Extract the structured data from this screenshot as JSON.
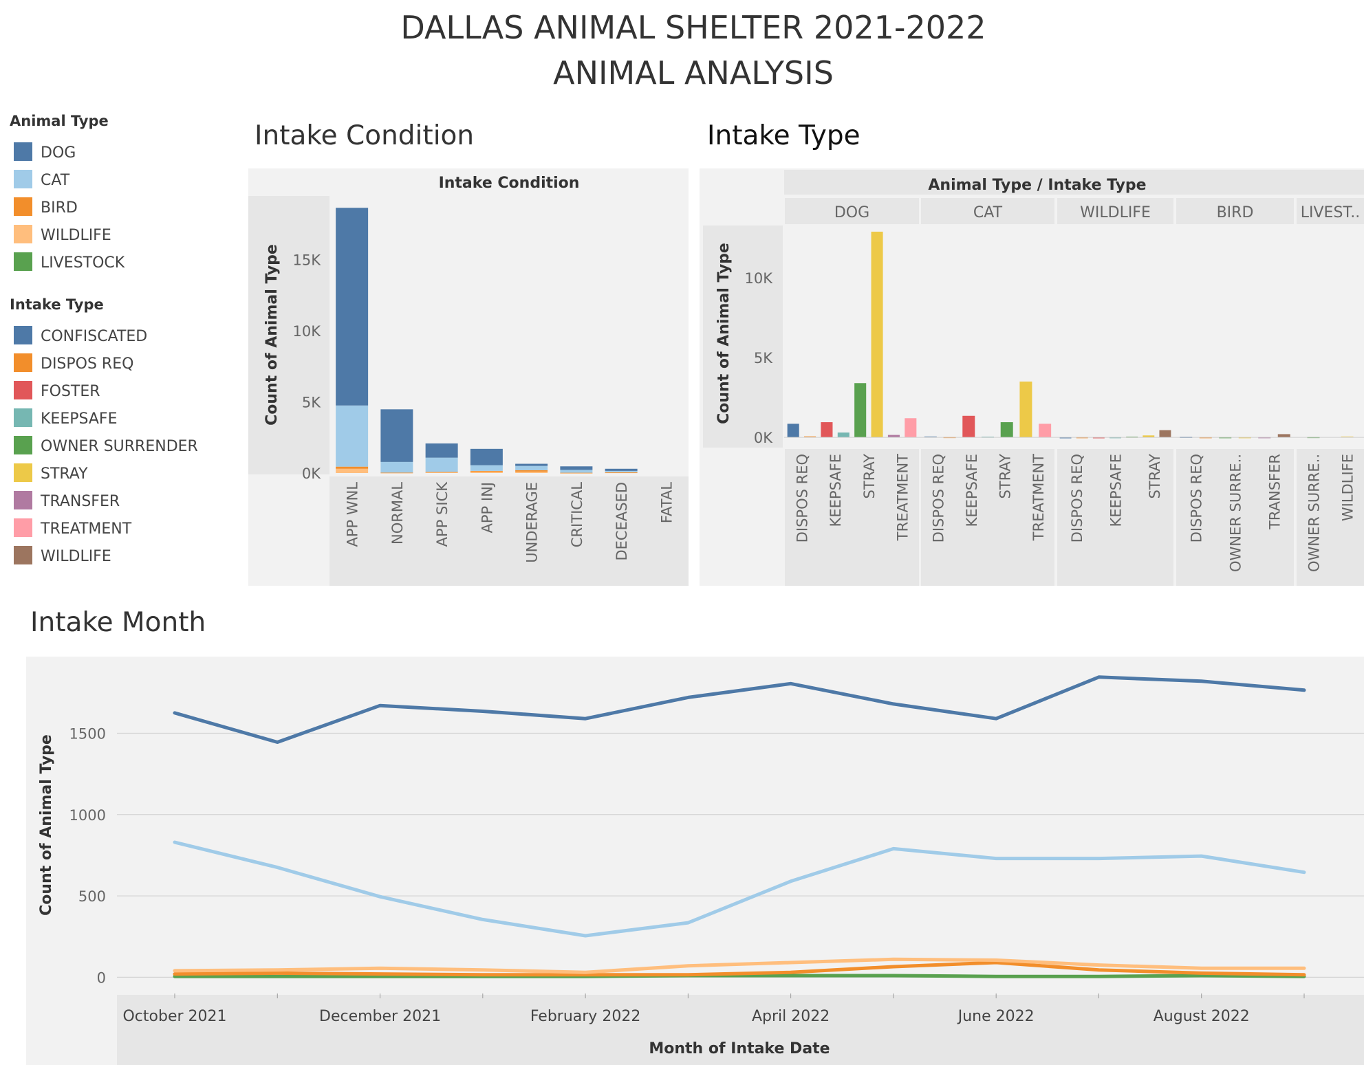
{
  "dashboard": {
    "title_line1": "DALLAS ANIMAL SHELTER 2021-2022",
    "title_line2": "ANIMAL ANALYSIS"
  },
  "legend_animal": {
    "title": "Animal Type",
    "items": [
      {
        "label": "DOG",
        "color": "#4e79a7"
      },
      {
        "label": "CAT",
        "color": "#a0cbe8"
      },
      {
        "label": "BIRD",
        "color": "#f28e2b"
      },
      {
        "label": "WILDLIFE",
        "color": "#ffbe7d"
      },
      {
        "label": "LIVESTOCK",
        "color": "#59a14f"
      }
    ]
  },
  "legend_intake": {
    "title": "Intake Type",
    "items": [
      {
        "label": "CONFISCATED",
        "color": "#4e79a7"
      },
      {
        "label": "DISPOS REQ",
        "color": "#f28e2b"
      },
      {
        "label": "FOSTER",
        "color": "#e15759"
      },
      {
        "label": "KEEPSAFE",
        "color": "#76b7b2"
      },
      {
        "label": "OWNER SURRENDER",
        "color": "#59a14f"
      },
      {
        "label": "STRAY",
        "color": "#edc948"
      },
      {
        "label": "TRANSFER",
        "color": "#b07aa1"
      },
      {
        "label": "TREATMENT",
        "color": "#ff9da7"
      },
      {
        "label": "WILDLIFE",
        "color": "#9c755f"
      }
    ]
  },
  "chart_data": [
    {
      "id": "condition",
      "type": "bar",
      "stacked": true,
      "title": "Intake Condition",
      "header": "Intake Condition",
      "ylabel": "Count of Animal Type",
      "ylim": [
        0,
        19000
      ],
      "yticks": [
        0,
        5000,
        10000,
        15000
      ],
      "ytick_labels": [
        "0K",
        "5K",
        "10K",
        "15K"
      ],
      "categories": [
        "APP WNL",
        "NORMAL",
        "APP SICK",
        "APP INJ",
        "UNDERAGE",
        "CRITICAL",
        "DECEASED",
        "FATAL"
      ],
      "series": [
        {
          "name": "WILDLIFE",
          "color": "#ffbe7d",
          "values": [
            300,
            20,
            50,
            100,
            100,
            10,
            30,
            0
          ]
        },
        {
          "name": "BIRD",
          "color": "#f28e2b",
          "values": [
            150,
            10,
            30,
            50,
            100,
            10,
            20,
            0
          ]
        },
        {
          "name": "CAT",
          "color": "#a0cbe8",
          "values": [
            4300,
            750,
            1000,
            400,
            300,
            200,
            100,
            0
          ]
        },
        {
          "name": "DOG",
          "color": "#4e79a7",
          "values": [
            13900,
            3700,
            1000,
            1150,
            150,
            250,
            150,
            0
          ]
        }
      ]
    },
    {
      "id": "intake_type",
      "type": "bar",
      "title": "Intake Type",
      "header": "Animal Type  /  Intake Type",
      "ylabel": "Count of Animal Type",
      "ylim": [
        -600,
        13200
      ],
      "yticks": [
        0,
        5000,
        10000
      ],
      "ytick_labels": [
        "0K",
        "5K",
        "10K"
      ],
      "panels": [
        {
          "name": "DOG",
          "bars": [
            {
              "type": "CONFISCATED",
              "value": 850,
              "color": "#4e79a7"
            },
            {
              "type": "DISPOS REQ",
              "value": 60,
              "color": "#f28e2b"
            },
            {
              "type": "FOSTER",
              "value": 950,
              "color": "#e15759"
            },
            {
              "type": "KEEPSAFE",
              "value": 300,
              "color": "#76b7b2"
            },
            {
              "type": "OWNER SURRENDER",
              "value": 3400,
              "color": "#59a14f"
            },
            {
              "type": "STRAY",
              "value": 12900,
              "color": "#edc948"
            },
            {
              "type": "TRANSFER",
              "value": 150,
              "color": "#b07aa1"
            },
            {
              "type": "TREATMENT",
              "value": 1200,
              "color": "#ff9da7"
            }
          ],
          "labels": [
            "DISPOS REQ",
            "KEEPSAFE",
            "STRAY",
            "TREATMENT"
          ]
        },
        {
          "name": "CAT",
          "bars": [
            {
              "type": "CONFISCATED",
              "value": 50,
              "color": "#4e79a7"
            },
            {
              "type": "DISPOS REQ",
              "value": 20,
              "color": "#f28e2b"
            },
            {
              "type": "FOSTER",
              "value": 1350,
              "color": "#e15759"
            },
            {
              "type": "KEEPSAFE",
              "value": 40,
              "color": "#76b7b2"
            },
            {
              "type": "OWNER SURRENDER",
              "value": 950,
              "color": "#59a14f"
            },
            {
              "type": "STRAY",
              "value": 3500,
              "color": "#edc948"
            },
            {
              "type": "TREATMENT",
              "value": 850,
              "color": "#ff9da7"
            }
          ],
          "labels": [
            "DISPOS REQ",
            "KEEPSAFE",
            "STRAY",
            "TREATMENT"
          ]
        },
        {
          "name": "WILDLIFE",
          "bars": [
            {
              "type": "CONFISCATED",
              "value": 5,
              "color": "#4e79a7"
            },
            {
              "type": "DISPOS REQ",
              "value": 10,
              "color": "#f28e2b"
            },
            {
              "type": "FOSTER",
              "value": 5,
              "color": "#e15759"
            },
            {
              "type": "KEEPSAFE",
              "value": 10,
              "color": "#76b7b2"
            },
            {
              "type": "OWNER SURRENDER",
              "value": 40,
              "color": "#59a14f"
            },
            {
              "type": "STRAY",
              "value": 120,
              "color": "#edc948"
            },
            {
              "type": "WILDLIFE",
              "value": 450,
              "color": "#9c755f"
            }
          ],
          "labels": [
            "DISPOS REQ",
            "KEEPSAFE",
            "STRAY"
          ]
        },
        {
          "name": "BIRD",
          "bars": [
            {
              "type": "CONFISCATED",
              "value": 30,
              "color": "#4e79a7"
            },
            {
              "type": "DISPOS REQ",
              "value": 10,
              "color": "#f28e2b"
            },
            {
              "type": "OWNER SURRENDER",
              "value": 10,
              "color": "#59a14f"
            },
            {
              "type": "STRAY",
              "value": 10,
              "color": "#edc948"
            },
            {
              "type": "TRANSFER",
              "value": 10,
              "color": "#b07aa1"
            },
            {
              "type": "WILDLIFE",
              "value": 200,
              "color": "#9c755f"
            }
          ],
          "labels": [
            "DISPOS REQ",
            "OWNER SURRE..",
            "TRANSFER"
          ]
        },
        {
          "name": "LIVEST..",
          "bars": [
            {
              "type": "OWNER SURRENDER",
              "value": 20,
              "color": "#59a14f"
            },
            {
              "type": "STRAY",
              "value": 50,
              "color": "#edc948"
            }
          ],
          "labels": [
            "OWNER SURRE..",
            "WILDLIFE"
          ]
        }
      ]
    },
    {
      "id": "month",
      "type": "line",
      "title": "Intake Month",
      "xlabel": "Month of Intake Date",
      "ylabel": "Count of Animal Type",
      "ylim": [
        -100,
        1950
      ],
      "yticks": [
        0,
        500,
        1000,
        1500
      ],
      "ytick_labels": [
        "0",
        "500",
        "1000",
        "1500"
      ],
      "x": [
        "Oct 2021",
        "Nov 2021",
        "Dec 2021",
        "Jan 2022",
        "Feb 2022",
        "Mar 2022",
        "Apr 2022",
        "May 2022",
        "Jun 2022",
        "Jul 2022",
        "Aug 2022",
        "Sep 2022"
      ],
      "xtick_labels": [
        "October 2021",
        "",
        "December 2021",
        "",
        "February 2022",
        "",
        "April 2022",
        "",
        "June 2022",
        "",
        "August 2022",
        ""
      ],
      "series": [
        {
          "name": "DOG",
          "color": "#4e79a7",
          "values": [
            1625,
            1445,
            1670,
            1635,
            1590,
            1720,
            1805,
            1680,
            1590,
            1845,
            1820,
            1765
          ]
        },
        {
          "name": "CAT",
          "color": "#a0cbe8",
          "values": [
            830,
            675,
            495,
            355,
            255,
            335,
            590,
            790,
            730,
            730,
            745,
            645
          ]
        },
        {
          "name": "WILDLIFE",
          "color": "#ffbe7d",
          "values": [
            40,
            45,
            55,
            45,
            30,
            70,
            90,
            110,
            105,
            75,
            55,
            55
          ]
        },
        {
          "name": "BIRD",
          "color": "#f28e2b",
          "values": [
            20,
            25,
            20,
            15,
            15,
            15,
            30,
            65,
            90,
            45,
            25,
            15
          ]
        },
        {
          "name": "LIVESTOCK",
          "color": "#59a14f",
          "values": [
            5,
            5,
            5,
            5,
            5,
            10,
            10,
            10,
            5,
            5,
            10,
            5
          ]
        }
      ]
    }
  ]
}
